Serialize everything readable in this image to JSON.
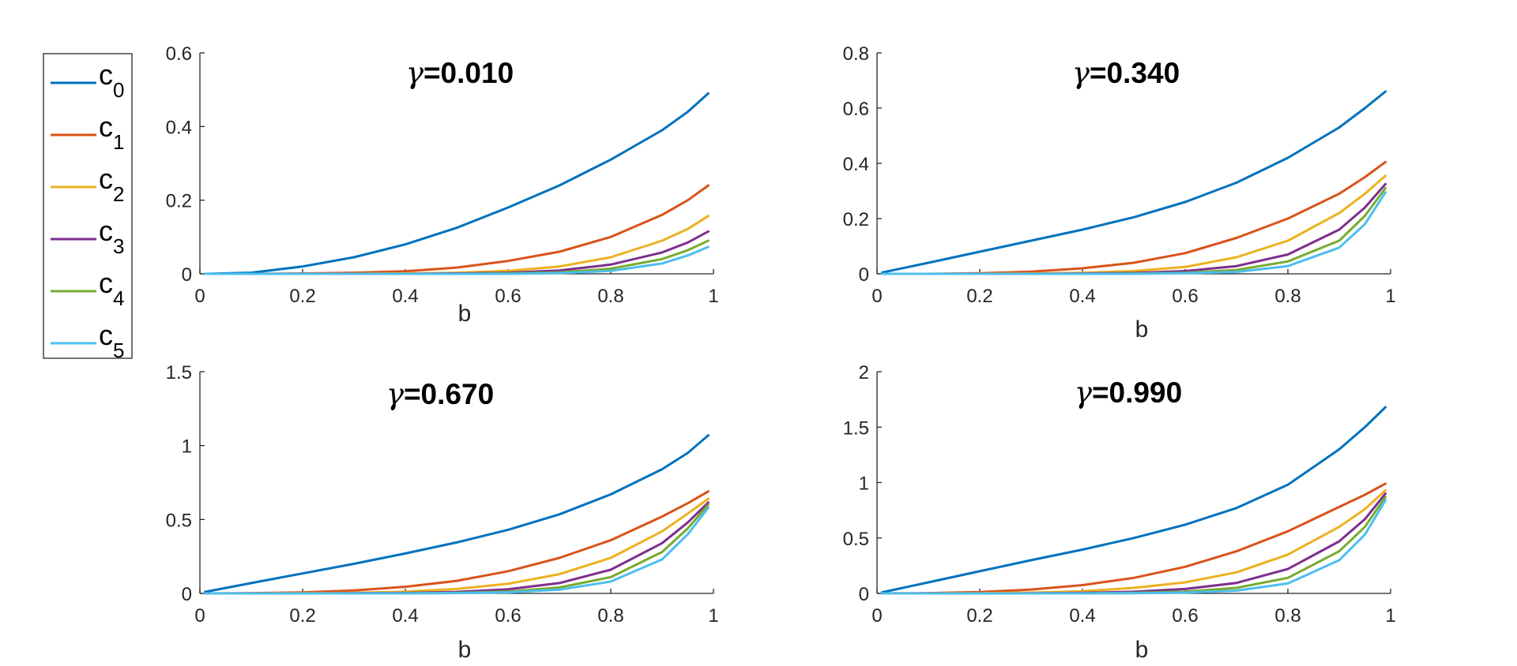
{
  "legend": {
    "entries": [
      {
        "label": "c",
        "sub": "0",
        "color": "#0072BD"
      },
      {
        "label": "c",
        "sub": "1",
        "color": "#D95319"
      },
      {
        "label": "c",
        "sub": "2",
        "color": "#EDB120"
      },
      {
        "label": "c",
        "sub": "3",
        "color": "#7E2F8E"
      },
      {
        "label": "c",
        "sub": "4",
        "color": "#77AC30"
      },
      {
        "label": "c",
        "sub": "5",
        "color": "#4DBEEE"
      }
    ]
  },
  "chart_data": [
    {
      "type": "line",
      "title_symbol": "γ",
      "title_value": "=0.010",
      "xlabel": "b",
      "xlim": [
        0,
        1
      ],
      "ylim": [
        0,
        0.6
      ],
      "xticks": [
        "0",
        "0.2",
        "0.4",
        "0.6",
        "0.8",
        "1"
      ],
      "yticks": [
        "0",
        "0.2",
        "0.4",
        "0.6"
      ],
      "x": [
        0.01,
        0.1,
        0.2,
        0.3,
        0.4,
        0.5,
        0.6,
        0.7,
        0.8,
        0.9,
        0.95,
        0.99
      ],
      "series": [
        {
          "name": "c0",
          "values": [
            0.0,
            0.003,
            0.02,
            0.045,
            0.08,
            0.125,
            0.18,
            0.24,
            0.31,
            0.39,
            0.44,
            0.49
          ]
        },
        {
          "name": "c1",
          "values": [
            0.0,
            0.0,
            0.001,
            0.003,
            0.007,
            0.017,
            0.035,
            0.06,
            0.1,
            0.16,
            0.2,
            0.24
          ]
        },
        {
          "name": "c2",
          "values": [
            0.0,
            0.0,
            0.0,
            0.0,
            0.001,
            0.003,
            0.008,
            0.02,
            0.045,
            0.09,
            0.122,
            0.157
          ]
        },
        {
          "name": "c3",
          "values": [
            0.0,
            0.0,
            0.0,
            0.0,
            0.0,
            0.001,
            0.003,
            0.009,
            0.025,
            0.058,
            0.085,
            0.115
          ]
        },
        {
          "name": "c4",
          "values": [
            0.0,
            0.0,
            0.0,
            0.0,
            0.0,
            0.0,
            0.001,
            0.004,
            0.014,
            0.04,
            0.064,
            0.09
          ]
        },
        {
          "name": "c5",
          "values": [
            0.0,
            0.0,
            0.0,
            0.0,
            0.0,
            0.0,
            0.0,
            0.002,
            0.008,
            0.028,
            0.05,
            0.073
          ]
        }
      ]
    },
    {
      "type": "line",
      "title_symbol": "γ",
      "title_value": "=0.340",
      "xlabel": "b",
      "xlim": [
        0,
        1
      ],
      "ylim": [
        0,
        0.8
      ],
      "xticks": [
        "0",
        "0.2",
        "0.4",
        "0.6",
        "0.8",
        "1"
      ],
      "yticks": [
        "0",
        "0.2",
        "0.4",
        "0.6",
        "0.8"
      ],
      "x": [
        0.01,
        0.1,
        0.2,
        0.3,
        0.4,
        0.5,
        0.6,
        0.7,
        0.8,
        0.9,
        0.95,
        0.99
      ],
      "series": [
        {
          "name": "c0",
          "values": [
            0.005,
            0.04,
            0.08,
            0.12,
            0.16,
            0.205,
            0.26,
            0.33,
            0.42,
            0.53,
            0.6,
            0.66
          ]
        },
        {
          "name": "c1",
          "values": [
            0.0,
            0.0,
            0.002,
            0.008,
            0.02,
            0.04,
            0.075,
            0.13,
            0.2,
            0.29,
            0.35,
            0.405
          ]
        },
        {
          "name": "c2",
          "values": [
            0.0,
            0.0,
            0.0,
            0.001,
            0.004,
            0.01,
            0.025,
            0.06,
            0.12,
            0.22,
            0.29,
            0.355
          ]
        },
        {
          "name": "c3",
          "values": [
            0.0,
            0.0,
            0.0,
            0.0,
            0.001,
            0.003,
            0.01,
            0.028,
            0.07,
            0.16,
            0.24,
            0.325
          ]
        },
        {
          "name": "c4",
          "values": [
            0.0,
            0.0,
            0.0,
            0.0,
            0.0,
            0.001,
            0.004,
            0.014,
            0.045,
            0.12,
            0.21,
            0.31
          ]
        },
        {
          "name": "c5",
          "values": [
            0.0,
            0.0,
            0.0,
            0.0,
            0.0,
            0.0,
            0.002,
            0.007,
            0.028,
            0.095,
            0.18,
            0.295
          ]
        }
      ]
    },
    {
      "type": "line",
      "title_symbol": "γ",
      "title_value": "=0.670",
      "xlabel": "b",
      "xlim": [
        0,
        1
      ],
      "ylim": [
        0,
        1.5
      ],
      "xticks": [
        "0",
        "0.2",
        "0.4",
        "0.6",
        "0.8",
        "1"
      ],
      "yticks": [
        "0",
        "0.5",
        "1",
        "1.5"
      ],
      "x": [
        0.01,
        0.1,
        0.2,
        0.3,
        0.4,
        0.5,
        0.6,
        0.7,
        0.8,
        0.9,
        0.95,
        0.99
      ],
      "series": [
        {
          "name": "c0",
          "values": [
            0.01,
            0.07,
            0.135,
            0.2,
            0.27,
            0.345,
            0.43,
            0.535,
            0.67,
            0.84,
            0.95,
            1.07
          ]
        },
        {
          "name": "c1",
          "values": [
            0.0,
            0.002,
            0.007,
            0.02,
            0.045,
            0.085,
            0.15,
            0.24,
            0.36,
            0.52,
            0.61,
            0.69
          ]
        },
        {
          "name": "c2",
          "values": [
            0.0,
            0.0,
            0.001,
            0.004,
            0.012,
            0.03,
            0.065,
            0.13,
            0.24,
            0.42,
            0.54,
            0.64
          ]
        },
        {
          "name": "c3",
          "values": [
            0.0,
            0.0,
            0.0,
            0.001,
            0.003,
            0.01,
            0.028,
            0.07,
            0.16,
            0.34,
            0.48,
            0.615
          ]
        },
        {
          "name": "c4",
          "values": [
            0.0,
            0.0,
            0.0,
            0.0,
            0.001,
            0.004,
            0.013,
            0.04,
            0.11,
            0.28,
            0.44,
            0.6
          ]
        },
        {
          "name": "c5",
          "values": [
            0.0,
            0.0,
            0.0,
            0.0,
            0.0,
            0.002,
            0.007,
            0.025,
            0.08,
            0.23,
            0.4,
            0.58
          ]
        }
      ]
    },
    {
      "type": "line",
      "title_symbol": "γ",
      "title_value": "=0.990",
      "xlabel": "b",
      "xlim": [
        0,
        1
      ],
      "ylim": [
        0,
        2
      ],
      "xticks": [
        "0",
        "0.2",
        "0.4",
        "0.6",
        "0.8",
        "1"
      ],
      "yticks": [
        "0",
        "0.5",
        "1",
        "1.5",
        "2"
      ],
      "x": [
        0.01,
        0.1,
        0.2,
        0.3,
        0.4,
        0.5,
        0.6,
        0.7,
        0.8,
        0.9,
        0.95,
        0.99
      ],
      "series": [
        {
          "name": "c0",
          "values": [
            0.01,
            0.1,
            0.2,
            0.3,
            0.395,
            0.5,
            0.62,
            0.77,
            0.98,
            1.3,
            1.5,
            1.68
          ]
        },
        {
          "name": "c1",
          "values": [
            0.0,
            0.003,
            0.012,
            0.035,
            0.075,
            0.14,
            0.24,
            0.38,
            0.56,
            0.78,
            0.89,
            0.99
          ]
        },
        {
          "name": "c2",
          "values": [
            0.0,
            0.0,
            0.002,
            0.007,
            0.02,
            0.05,
            0.1,
            0.19,
            0.35,
            0.6,
            0.76,
            0.93
          ]
        },
        {
          "name": "c3",
          "values": [
            0.0,
            0.0,
            0.0,
            0.001,
            0.005,
            0.015,
            0.04,
            0.095,
            0.22,
            0.47,
            0.67,
            0.9
          ]
        },
        {
          "name": "c4",
          "values": [
            0.0,
            0.0,
            0.0,
            0.0,
            0.001,
            0.005,
            0.016,
            0.05,
            0.14,
            0.38,
            0.6,
            0.87
          ]
        },
        {
          "name": "c5",
          "values": [
            0.0,
            0.0,
            0.0,
            0.0,
            0.0,
            0.002,
            0.007,
            0.025,
            0.09,
            0.3,
            0.53,
            0.84
          ]
        }
      ]
    }
  ]
}
